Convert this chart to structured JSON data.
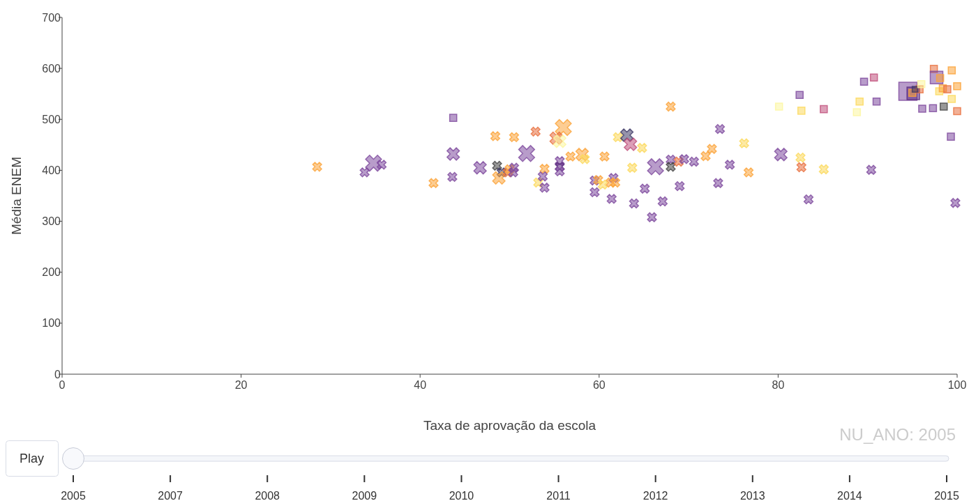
{
  "chart_data": {
    "type": "bubble",
    "xlabel": "Taxa de aprovação da escola",
    "ylabel": "Média ENEM",
    "xlim": [
      0,
      100
    ],
    "xticks": [
      0,
      20,
      40,
      60,
      80,
      100
    ],
    "ylim": [
      0,
      700
    ],
    "yticks": [
      0,
      100,
      200,
      300,
      400,
      500,
      600,
      700
    ],
    "grid": false,
    "annotations": [
      "NU_ANO: 2005",
      "Play",
      "2005",
      "2007",
      "2008",
      "2009",
      "2010",
      "2011",
      "2012",
      "2013",
      "2014",
      "2015"
    ],
    "series": [
      {
        "marker": "cross",
        "x": [
          28.5,
          33.8,
          34.8,
          35.7,
          41.5,
          43.7,
          43.6,
          46.7,
          48.4,
          50.5,
          48.6,
          49.1,
          48.8,
          49.8,
          50.0,
          50.5,
          50.4,
          51.9,
          52.9,
          53.9,
          53.2,
          53.7,
          53.9,
          56.0,
          55.2,
          55.6,
          56.8,
          58.1,
          58.4,
          60.6,
          55.6,
          55.6,
          55.6,
          62.1,
          63.1,
          63.5,
          64.8,
          68.0,
          63.7,
          66.3,
          68.0,
          68.0,
          68.9,
          69.5,
          70.6,
          71.9,
          72.6,
          73.5,
          74.6,
          59.5,
          59.9,
          60.4,
          61.6,
          61.3,
          61.8,
          59.5,
          61.4,
          63.9,
          65.1,
          67.1,
          69.0,
          65.9,
          73.3,
          76.2,
          80.3,
          82.5,
          76.7,
          82.6,
          85.1,
          90.4,
          83.4,
          99.8
        ],
        "values": [
          407,
          396,
          414,
          411,
          375,
          432,
          387,
          405,
          467,
          465,
          409,
          396,
          385,
          396,
          402,
          405,
          396,
          433,
          476,
          403,
          376,
          388,
          366,
          484,
          463,
          457,
          427,
          431,
          422,
          427,
          418,
          407,
          398,
          465,
          469,
          451,
          444,
          525,
          405,
          407,
          421,
          407,
          417,
          422,
          417,
          428,
          442,
          481,
          411,
          380,
          381,
          372,
          385,
          376,
          376,
          357,
          344,
          335,
          364,
          339,
          369,
          308,
          375,
          453,
          431,
          425,
          396,
          406,
          402,
          401,
          343,
          336
        ],
        "sizes": [
          0.15,
          0.15,
          0.48,
          0.15,
          0.15,
          0.29,
          0.15,
          0.29,
          0.15,
          0.15,
          0.15,
          0.15,
          0.29,
          0.15,
          0.15,
          0.15,
          0.15,
          0.48,
          0.15,
          0.15,
          0.15,
          0.15,
          0.15,
          0.48,
          0.29,
          0.29,
          0.15,
          0.29,
          0.15,
          0.15,
          0.15,
          0.15,
          0.15,
          0.15,
          0.29,
          0.29,
          0.15,
          0.15,
          0.15,
          0.48,
          0.15,
          0.15,
          0.15,
          0.15,
          0.15,
          0.15,
          0.15,
          0.15,
          0.15,
          0.15,
          0.15,
          0.15,
          0.15,
          0.15,
          0.15,
          0.15,
          0.15,
          0.15,
          0.15,
          0.15,
          0.15,
          0.15,
          0.15,
          0.15,
          0.29,
          0.15,
          0.15,
          0.15,
          0.15,
          0.15,
          0.15,
          0.15
        ],
        "colors": [
          "#fba43a",
          "#7e4a9e",
          "#7e4a9e",
          "#7e4a9e",
          "#fba43a",
          "#7e4a9e",
          "#7e4a9e",
          "#7e4a9e",
          "#fba43a",
          "#fba43a",
          "#444444",
          "#3e3a66",
          "#fba43a",
          "#e8703f",
          "#fba43a",
          "#7e4a9e",
          "#7e4a9e",
          "#7e4a9e",
          "#e8703f",
          "#fba43a",
          "#fbd95c",
          "#7e4a9e",
          "#7e4a9e",
          "#fba43a",
          "#e8703f",
          "#fcf6a0",
          "#fba43a",
          "#fba43a",
          "#fbd95c",
          "#fba43a",
          "#7e4a9e",
          "#5a2a80",
          "#7e4a9e",
          "#fbd95c",
          "#3e3a66",
          "#c0507c",
          "#fbd95c",
          "#fba43a",
          "#fbd95c",
          "#7e4a9e",
          "#7e4a9e",
          "#444444",
          "#e8703f",
          "#7e4a9e",
          "#7e4a9e",
          "#fba43a",
          "#fba43a",
          "#7e4a9e",
          "#7e4a9e",
          "#7e4a9e",
          "#fba43a",
          "#fbd95c",
          "#7e4a9e",
          "#fba43a",
          "#fba43a",
          "#7e4a9e",
          "#7e4a9e",
          "#7e4a9e",
          "#7e4a9e",
          "#7e4a9e",
          "#7e4a9e",
          "#7e4a9e",
          "#7e4a9e",
          "#fbd95c",
          "#7e4a9e",
          "#fbd95c",
          "#fba43a",
          "#e8703f",
          "#fbd95c",
          "#7e4a9e",
          "#7e4a9e",
          "#7e4a9e"
        ]
      },
      {
        "marker": "square",
        "x": [
          43.7,
          80.1,
          82.6,
          82.4,
          85.1,
          88.8,
          89.1,
          91.0,
          89.6,
          90.7,
          94.5,
          95.1,
          95.0,
          95.8,
          95.3,
          96.0,
          97.4,
          97.7,
          98.1,
          99.4,
          98.0,
          98.4,
          98.9,
          100,
          99.4,
          96.1,
          97.3,
          98.5,
          100,
          99.3
        ],
        "values": [
          503,
          525,
          517,
          548,
          520,
          514,
          535,
          535,
          574,
          582,
          555,
          551,
          552,
          559,
          559,
          569,
          599,
          582,
          581,
          596,
          555,
          561,
          559,
          565,
          540,
          521,
          522,
          525,
          516,
          466
        ],
        "sizes": [
          0.15,
          0.15,
          0.15,
          0.15,
          0.15,
          0.15,
          0.15,
          0.15,
          0.15,
          0.15,
          1,
          0.48,
          0.15,
          0.15,
          0.1,
          0.15,
          0.15,
          0.48,
          0.15,
          0.15,
          0.15,
          0.15,
          0.15,
          0.15,
          0.15,
          0.15,
          0.15,
          0.15,
          0.15,
          0.15
        ],
        "colors": [
          "#7e4a9e",
          "#fcf6a0",
          "#fbd95c",
          "#7e4a9e",
          "#c0507c",
          "#fcf6a0",
          "#fbd95c",
          "#7e4a9e",
          "#7e4a9e",
          "#c0507c",
          "#7e4a9e",
          "#5a2a80",
          "#fba43a",
          "#e8703f",
          "#3e3a66",
          "#fcf6a0",
          "#e8703f",
          "#7e4a9e",
          "#fba43a",
          "#fba43a",
          "#fbd95c",
          "#fba43a",
          "#e8703f",
          "#fba43a",
          "#fbd95c",
          "#7e4a9e",
          "#7e4a9e",
          "#444444",
          "#e8703f",
          "#7e4a9e"
        ]
      }
    ]
  }
}
